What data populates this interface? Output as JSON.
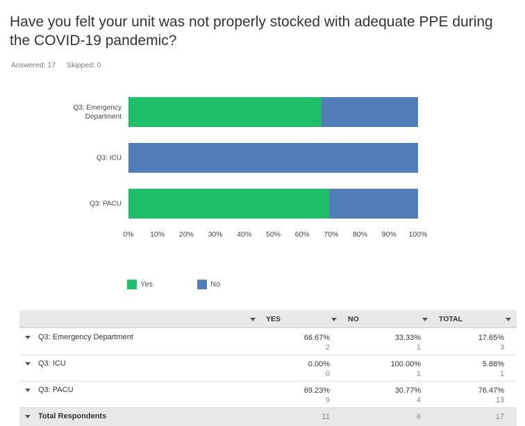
{
  "header": {
    "title": "Have you felt your unit was not properly stocked with adequate PPE during the COVID-19 pandemic?",
    "answered": "Answered: 17",
    "skipped": "Skipped: 0"
  },
  "chart_data": {
    "type": "bar",
    "orientation": "horizontal",
    "stacked": true,
    "categories": [
      "Q3: Emergency Department",
      "Q3: ICU",
      "Q3: PACU"
    ],
    "series": [
      {
        "name": "Yes",
        "color": "#1fbf6a",
        "values": [
          66.67,
          0,
          69.23
        ]
      },
      {
        "name": "No",
        "color": "#517db8",
        "values": [
          33.33,
          100,
          30.77
        ]
      }
    ],
    "xlim": [
      0,
      100
    ],
    "xticks": [
      {
        "value": 0,
        "label": "0%"
      },
      {
        "value": 10,
        "label": "10%"
      },
      {
        "value": 20,
        "label": "20%"
      },
      {
        "value": 30,
        "label": "30%"
      },
      {
        "value": 40,
        "label": "40%"
      },
      {
        "value": 50,
        "label": "50%"
      },
      {
        "value": 60,
        "label": "60%"
      },
      {
        "value": 70,
        "label": "70%"
      },
      {
        "value": 80,
        "label": "80%"
      },
      {
        "value": 90,
        "label": "90%"
      },
      {
        "value": 100,
        "label": "100%"
      }
    ],
    "grid": false,
    "legend": "bottom"
  },
  "table": {
    "columns": [
      "YES",
      "NO",
      "TOTAL"
    ],
    "rows": [
      {
        "label": "Q3: Emergency Department",
        "cells": [
          [
            "66.67%",
            2
          ],
          [
            "33.33%",
            1
          ],
          [
            "17.65%",
            3
          ]
        ]
      },
      {
        "label": "Q3: ICU",
        "cells": [
          [
            "0.00%",
            0
          ],
          [
            "100.00%",
            1
          ],
          [
            "5.88%",
            1
          ]
        ]
      },
      {
        "label": "Q3: PACU",
        "cells": [
          [
            "69.23%",
            9
          ],
          [
            "30.77%",
            4
          ],
          [
            "76.47%",
            13
          ]
        ]
      }
    ],
    "total": {
      "label": "Total Respondents",
      "cells": [
        11,
        6,
        17
      ]
    }
  }
}
